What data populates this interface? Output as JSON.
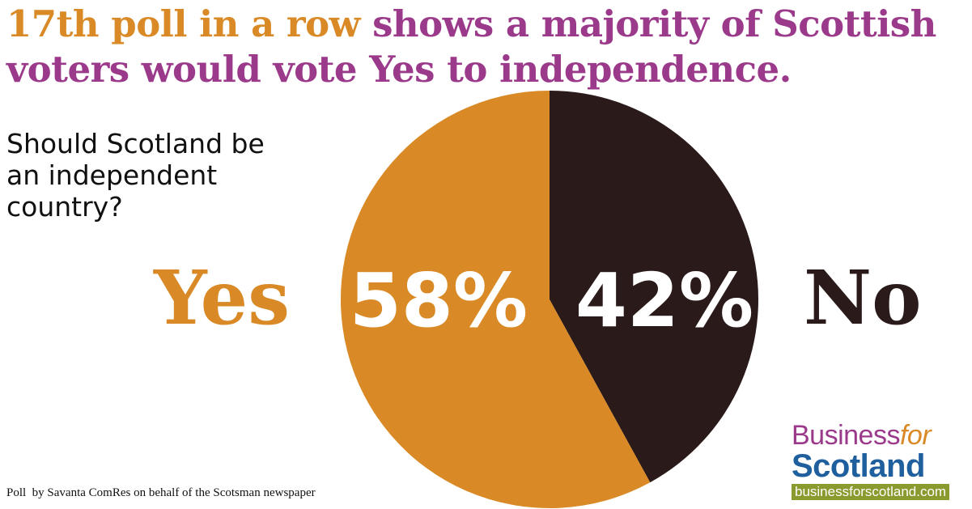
{
  "headline": {
    "part1": "17th poll in a row",
    "part2": " shows a majority of Scottish voters would vote Yes to independence."
  },
  "question": "Should Scotland be an independent country?",
  "labels": {
    "yes": "Yes",
    "no": "No"
  },
  "source": "Poll  by Savanta ComRes on behalf of the Scotsman newspaper",
  "logo": {
    "business": "Business",
    "for": "for",
    "scotland": "Scotland",
    "url": "businessforscotland.com"
  },
  "colors": {
    "yes": "#d98a26",
    "no": "#2a1a19",
    "headline": "#9b3a8a"
  },
  "chart_data": {
    "type": "pie",
    "categories": [
      "Yes",
      "No"
    ],
    "values": [
      58,
      42
    ],
    "value_labels": [
      "58%",
      "42%"
    ],
    "colors": [
      "#d98a26",
      "#2a1a19"
    ]
  }
}
